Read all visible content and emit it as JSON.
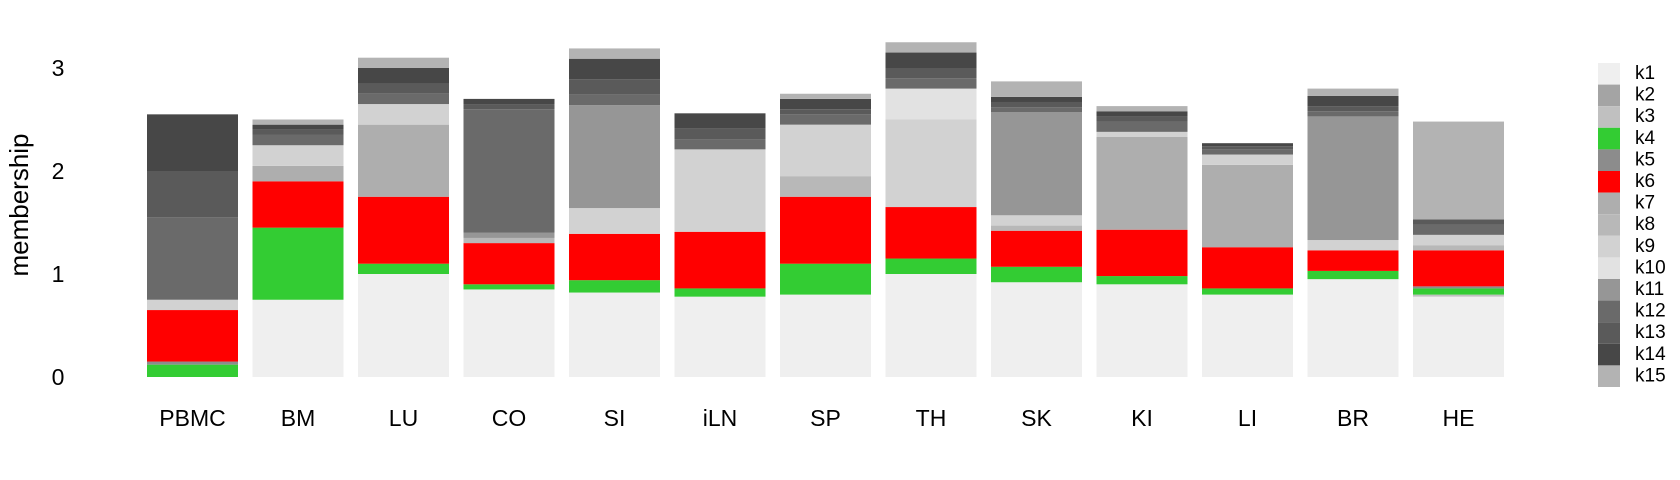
{
  "chart_data": {
    "type": "bar",
    "subtype": "stacked-structure-plot",
    "title": "",
    "xlabel": "",
    "ylabel": "membership",
    "ylim": [
      0,
      3.35
    ],
    "yticks": [
      0,
      1,
      2,
      3
    ],
    "grid": false,
    "legend_placement": "right",
    "categories": [
      "PBMC",
      "BM",
      "LU",
      "CO",
      "SI",
      "iLN",
      "SP",
      "TH",
      "SK",
      "KI",
      "LI",
      "BR",
      "HE"
    ],
    "series": [
      {
        "name": "k1",
        "color": "#efefef",
        "values": [
          0.0,
          0.75,
          1.0,
          0.85,
          0.82,
          0.78,
          0.8,
          1.0,
          0.92,
          0.9,
          0.8,
          0.95,
          0.78
        ]
      },
      {
        "name": "k2",
        "color": "#a4a4a4",
        "values": [
          0.0,
          0.0,
          0.0,
          0.0,
          0.0,
          0.0,
          0.0,
          0.0,
          0.0,
          0.0,
          0.0,
          0.0,
          0.0
        ]
      },
      {
        "name": "k3",
        "color": "#c0c0c0",
        "values": [
          0.0,
          0.0,
          0.0,
          0.0,
          0.0,
          0.0,
          0.0,
          0.0,
          0.0,
          0.0,
          0.0,
          0.0,
          0.02
        ]
      },
      {
        "name": "k4",
        "color": "#33cc33",
        "values": [
          0.12,
          0.7,
          0.1,
          0.05,
          0.12,
          0.08,
          0.3,
          0.15,
          0.15,
          0.08,
          0.06,
          0.08,
          0.06
        ]
      },
      {
        "name": "k5",
        "color": "#8c8c8c",
        "values": [
          0.03,
          0.0,
          0.0,
          0.0,
          0.0,
          0.0,
          0.0,
          0.0,
          0.0,
          0.0,
          0.0,
          0.0,
          0.02
        ]
      },
      {
        "name": "k6",
        "color": "#ff0000",
        "values": [
          0.5,
          0.45,
          0.65,
          0.4,
          0.45,
          0.55,
          0.65,
          0.5,
          0.35,
          0.45,
          0.4,
          0.2,
          0.35
        ]
      },
      {
        "name": "k7",
        "color": "#aeaeae",
        "values": [
          0.0,
          0.15,
          0.7,
          0.0,
          0.0,
          0.0,
          0.0,
          0.0,
          0.0,
          0.9,
          0.8,
          0.0,
          0.0
        ]
      },
      {
        "name": "k8",
        "color": "#b8b8b8",
        "values": [
          0.0,
          0.0,
          0.0,
          0.05,
          0.0,
          0.0,
          0.2,
          0.0,
          0.05,
          0.0,
          0.0,
          0.0,
          0.05
        ]
      },
      {
        "name": "k9",
        "color": "#d2d2d2",
        "values": [
          0.1,
          0.2,
          0.2,
          0.0,
          0.25,
          0.8,
          0.5,
          0.85,
          0.1,
          0.05,
          0.1,
          0.1,
          0.1
        ]
      },
      {
        "name": "k10",
        "color": "#e2e2e2",
        "values": [
          0.0,
          0.0,
          0.0,
          0.0,
          0.0,
          0.0,
          0.0,
          0.3,
          0.0,
          0.0,
          0.0,
          0.0,
          0.0
        ]
      },
      {
        "name": "k11",
        "color": "#969696",
        "values": [
          0.0,
          0.0,
          0.0,
          0.05,
          1.0,
          0.0,
          0.0,
          0.0,
          1.0,
          0.0,
          0.0,
          1.2,
          0.0
        ]
      },
      {
        "name": "k12",
        "color": "#6a6a6a",
        "values": [
          0.8,
          0.1,
          0.1,
          1.2,
          0.1,
          0.1,
          0.1,
          0.1,
          0.05,
          0.1,
          0.05,
          0.05,
          0.1
        ]
      },
      {
        "name": "k13",
        "color": "#5a5a5a",
        "values": [
          0.45,
          0.05,
          0.1,
          0.05,
          0.15,
          0.1,
          0.05,
          0.1,
          0.05,
          0.05,
          0.03,
          0.05,
          0.05
        ]
      },
      {
        "name": "k14",
        "color": "#474747",
        "values": [
          0.55,
          0.05,
          0.15,
          0.05,
          0.2,
          0.15,
          0.1,
          0.15,
          0.05,
          0.05,
          0.03,
          0.1,
          0.0
        ]
      },
      {
        "name": "k15",
        "color": "#b3b3b3",
        "values": [
          0.0,
          0.05,
          0.1,
          0.0,
          0.1,
          0.0,
          0.05,
          0.1,
          0.15,
          0.05,
          0.0,
          0.07,
          0.95
        ]
      }
    ]
  }
}
